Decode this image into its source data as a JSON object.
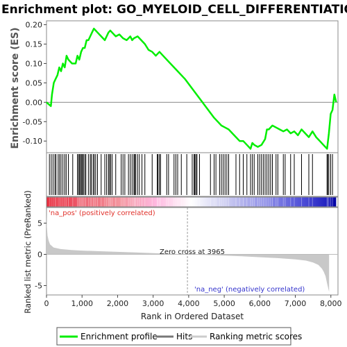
{
  "title": "Enrichment plot: GO_MYELOID_CELL_DIFFERENTIATION",
  "colors": {
    "es_line": "#00ee00",
    "hits": "#000000",
    "metric": "#c8c8c8",
    "pos_text": "#e0302a",
    "neg_text": "#3333cc"
  },
  "chart_data": [
    {
      "type": "line",
      "name": "enrichment-score-panel",
      "ylabel": "Enrichment score (ES)",
      "xlim": [
        0,
        8000
      ],
      "ylim": [
        -0.13,
        0.21
      ],
      "yticks": [
        -0.1,
        -0.05,
        0.0,
        0.05,
        0.1,
        0.15,
        0.2
      ],
      "ytick_labels": [
        "-0.10",
        "-0.05",
        "0.00",
        "0.05",
        "0.10",
        "0.15",
        "0.20"
      ],
      "series": [
        {
          "name": "Enrichment profile",
          "x": [
            0,
            120,
            150,
            200,
            250,
            300,
            350,
            400,
            450,
            500,
            550,
            600,
            700,
            800,
            850,
            900,
            950,
            1000,
            1050,
            1100,
            1150,
            1200,
            1250,
            1300,
            1350,
            1400,
            1500,
            1600,
            1700,
            1750,
            1800,
            1900,
            2000,
            2100,
            2200,
            2300,
            2350,
            2400,
            2500,
            2600,
            2700,
            2800,
            2900,
            3000,
            3100,
            3200,
            3400,
            3600,
            3800,
            4000,
            4200,
            4400,
            4600,
            4700,
            4800,
            4900,
            5000,
            5100,
            5300,
            5400,
            5500,
            5600,
            5650,
            5700,
            5800,
            5900,
            6000,
            6050,
            6100,
            6200,
            6300,
            6400,
            6500,
            6600,
            6700,
            6800,
            6900,
            7000,
            7100,
            7200,
            7300,
            7400,
            7500,
            7600,
            7700,
            7750,
            7800,
            7850,
            7900,
            7950
          ],
          "y": [
            0.0,
            -0.01,
            0.02,
            0.05,
            0.06,
            0.07,
            0.09,
            0.08,
            0.1,
            0.09,
            0.12,
            0.11,
            0.1,
            0.1,
            0.12,
            0.11,
            0.13,
            0.14,
            0.14,
            0.16,
            0.16,
            0.17,
            0.18,
            0.19,
            0.185,
            0.18,
            0.17,
            0.16,
            0.18,
            0.185,
            0.18,
            0.17,
            0.175,
            0.165,
            0.16,
            0.17,
            0.16,
            0.165,
            0.17,
            0.16,
            0.15,
            0.135,
            0.13,
            0.12,
            0.13,
            0.12,
            0.1,
            0.08,
            0.06,
            0.035,
            0.01,
            -0.015,
            -0.04,
            -0.05,
            -0.06,
            -0.065,
            -0.07,
            -0.08,
            -0.1,
            -0.1,
            -0.11,
            -0.12,
            -0.105,
            -0.11,
            -0.115,
            -0.11,
            -0.095,
            -0.07,
            -0.07,
            -0.06,
            -0.065,
            -0.07,
            -0.075,
            -0.07,
            -0.08,
            -0.075,
            -0.085,
            -0.07,
            -0.08,
            -0.09,
            -0.075,
            -0.09,
            -0.1,
            -0.11,
            -0.12,
            -0.08,
            -0.03,
            -0.02,
            0.02,
            0.0
          ]
        }
      ]
    },
    {
      "type": "scatter",
      "name": "hits-panel",
      "legend_entry": "Hits",
      "hit_ranks": [
        80,
        130,
        180,
        230,
        260,
        320,
        360,
        400,
        450,
        500,
        540,
        600,
        720,
        850,
        880,
        910,
        930,
        960,
        990,
        1010,
        1050,
        1080,
        1150,
        1200,
        1230,
        1280,
        1310,
        1350,
        1400,
        1500,
        1600,
        1650,
        1700,
        1730,
        1760,
        1800,
        1900,
        2050,
        2100,
        2150,
        2250,
        2300,
        2350,
        2400,
        2420,
        2450,
        2500,
        2550,
        2620,
        2700,
        2900,
        3040,
        3060,
        3100,
        3130,
        3300,
        3350,
        3500,
        3550,
        3600,
        3700,
        3850,
        4000,
        4050,
        4070,
        4100,
        4130,
        4200,
        4500,
        4600,
        4650,
        4750,
        4800,
        4850,
        4900,
        4950,
        5000,
        5200,
        5300,
        5400,
        5500,
        5600,
        5650,
        5700,
        5800,
        5850,
        5900,
        5950,
        6000,
        6050,
        6100,
        6150,
        6200,
        6300,
        6350,
        6500,
        6550,
        6700,
        6800,
        7000,
        7200,
        7300,
        7700,
        7720,
        7750,
        7800,
        7850
      ]
    },
    {
      "type": "heatmap",
      "name": "rank-color-bar",
      "x": [
        0,
        1000,
        2000,
        3000,
        3965,
        5000,
        6000,
        7000,
        7700,
        7950
      ],
      "values": [
        2.0,
        1.2,
        0.8,
        0.3,
        0.0,
        -0.4,
        -0.8,
        -1.2,
        -2.0,
        -2.5
      ],
      "colors": [
        "#e8283a",
        "#ee6070",
        "#f3959e",
        "#ffb8e0",
        "#ffffff",
        "#c8c8f0",
        "#9090e8",
        "#5050d8",
        "#2020c0",
        "#0000a0"
      ]
    },
    {
      "type": "area",
      "name": "ranked-metric-panel",
      "ylabel": "Ranked list metric (PreRanked)",
      "xlabel": "Rank in Ordered Dataset",
      "xlim": [
        0,
        8200
      ],
      "ylim": [
        -6.5,
        7.5
      ],
      "xticks": [
        0,
        1000,
        2000,
        3000,
        4000,
        5000,
        6000,
        7000,
        8000
      ],
      "xtick_labels": [
        "0",
        "1,000",
        "2,000",
        "3,000",
        "4,000",
        "5,000",
        "6,000",
        "7,000",
        "8,000"
      ],
      "yticks": [
        -5,
        0,
        5
      ],
      "ytick_labels": [
        "-5",
        "0",
        "5"
      ],
      "series": [
        {
          "name": "Ranking metric scores",
          "x": [
            0,
            10,
            30,
            60,
            100,
            200,
            400,
            700,
            1000,
            1500,
            2000,
            2500,
            3000,
            3500,
            3965,
            4500,
            5000,
            5500,
            6000,
            6500,
            7000,
            7300,
            7500,
            7650,
            7750,
            7800,
            7850,
            7900,
            7950
          ],
          "y": [
            6.5,
            4.5,
            3.0,
            2.2,
            1.6,
            1.1,
            0.85,
            0.7,
            0.6,
            0.5,
            0.4,
            0.3,
            0.2,
            0.1,
            0.0,
            -0.1,
            -0.2,
            -0.3,
            -0.45,
            -0.6,
            -0.8,
            -1.0,
            -1.3,
            -1.7,
            -2.3,
            -2.8,
            -3.5,
            -4.8,
            -6.0
          ]
        }
      ],
      "annotations": {
        "pos": "'na_pos' (positively correlated)",
        "neg": "'na_neg' (negatively correlated)",
        "zero": "Zero cross at 3965",
        "zero_cross": 3965
      }
    }
  ],
  "legend": {
    "items": [
      "Enrichment profile",
      "Hits",
      "Ranking metric scores"
    ]
  }
}
